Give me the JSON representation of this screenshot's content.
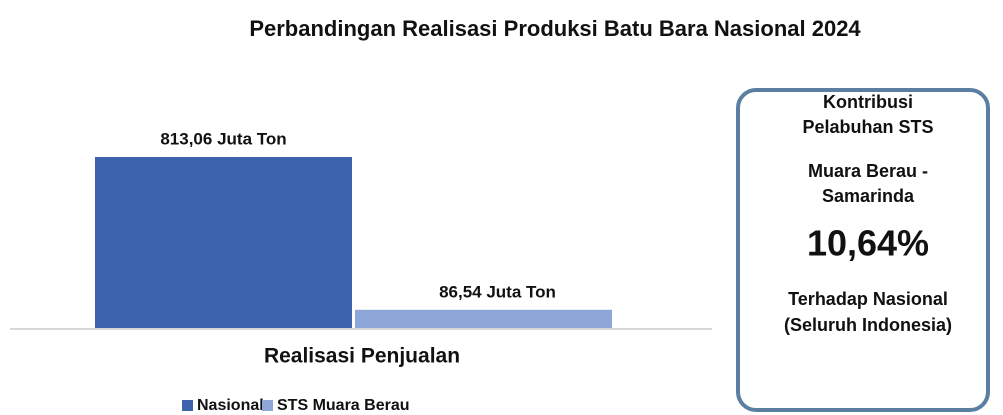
{
  "chart_data": {
    "type": "bar",
    "title": "Perbandingan Realisasi Produksi Batu Bara Nasional 2024",
    "xlabel": "Realisasi Penjualan",
    "categories": [
      null
    ],
    "series": [
      {
        "name": "Nasional",
        "color": "#3d63ad",
        "values": [
          813.06
        ],
        "value_labels": [
          "813,06 Juta Ton"
        ]
      },
      {
        "name": "STS Muara Berau",
        "color": "#8fa6d8",
        "values": [
          86.54
        ],
        "value_labels": [
          "86,54 Juta Ton"
        ]
      }
    ]
  },
  "card": {
    "heading": [
      "Kontribusi",
      "Pelabuhan STS",
      "Muara Berau -",
      "Samarinda"
    ],
    "highlight": "10,64%",
    "footer": [
      "Terhadap Nasional",
      "(Seluruh Indonesia)"
    ]
  }
}
